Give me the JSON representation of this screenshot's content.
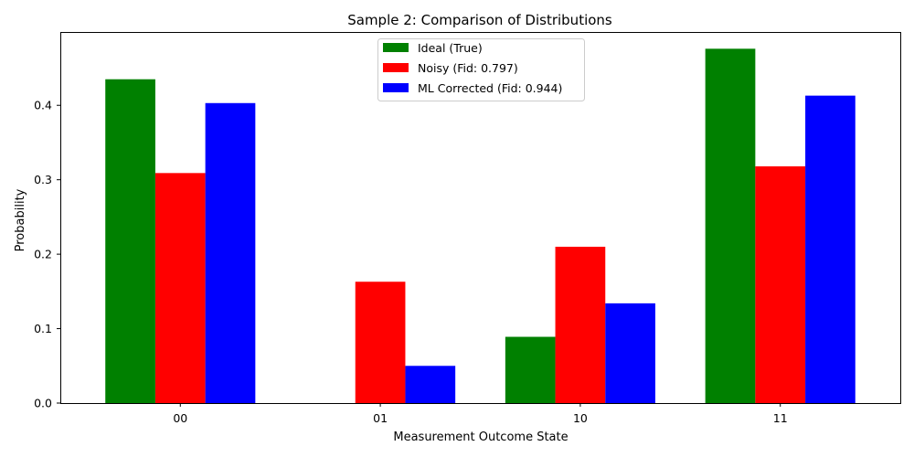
{
  "chart_data": {
    "type": "bar",
    "title": "Sample 2: Comparison of Distributions",
    "xlabel": "Measurement Outcome State",
    "ylabel": "Probability",
    "categories": [
      "00",
      "01",
      "10",
      "11"
    ],
    "ylim": [
      0,
      0.4985
    ],
    "yticks": [
      0.0,
      0.1,
      0.2,
      0.3,
      0.4
    ],
    "ytick_labels": [
      "0.0",
      "0.1",
      "0.2",
      "0.3",
      "0.4"
    ],
    "grid": false,
    "legend_position": "top-center",
    "series": [
      {
        "name": "Ideal (True)",
        "color": "#008000",
        "values": [
          0.435,
          0.0,
          0.089,
          0.476
        ]
      },
      {
        "name": "Noisy (Fid: 0.797)",
        "color": "#ff0000",
        "values": [
          0.309,
          0.163,
          0.21,
          0.318
        ]
      },
      {
        "name": "ML Corrected (Fid: 0.944)",
        "color": "#0000ff",
        "values": [
          0.403,
          0.05,
          0.134,
          0.413
        ]
      }
    ]
  }
}
